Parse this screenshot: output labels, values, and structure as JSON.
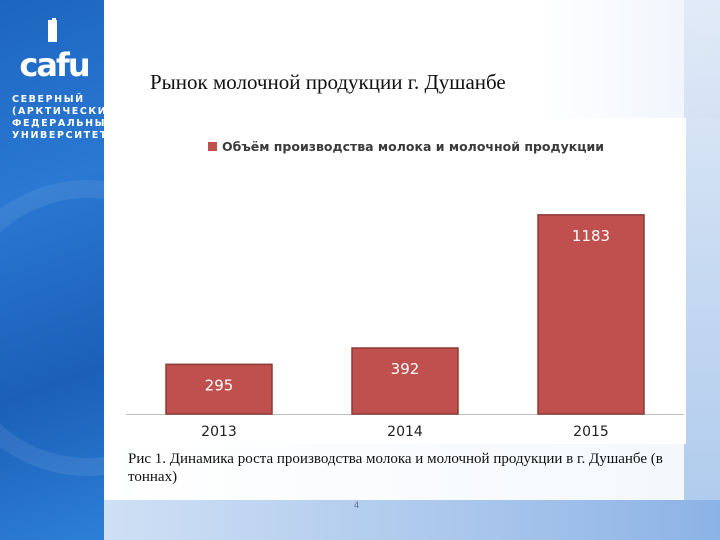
{
  "slide": {
    "title": "Рынок молочной продукции г. Душанбе",
    "caption": "Рис 1. Динамика роста производства молока и молочной продукции в г. Душанбе  (в тоннах)",
    "page_number": "4"
  },
  "logo": {
    "wordmark": "cafu",
    "lines": [
      "СЕВЕРНЫЙ",
      "(АРКТИЧЕСКИЙ)",
      "ФЕДЕРАЛЬНЫЙ",
      "УНИВЕРСИТЕТ"
    ],
    "icon": "university-logo-icon"
  },
  "colors": {
    "bar": "#c0504d",
    "bar_border": "#8c3a38",
    "sidebar": "#2068c4"
  },
  "chart_data": {
    "type": "bar",
    "categories": [
      "2013",
      "2014",
      "2015"
    ],
    "series": [
      {
        "name": "Объём производства молока и молочной продукции",
        "values": [
          295,
          392,
          1183
        ]
      }
    ],
    "ylim": [
      0,
      1200
    ],
    "grid": false,
    "legend_position": "top"
  }
}
